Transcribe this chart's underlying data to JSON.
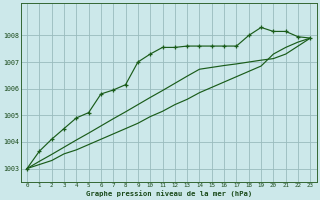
{
  "title": "Graphe pression niveau de la mer (hPa)",
  "background_color": "#cce8ea",
  "grid_color": "#99bbbd",
  "line_color": "#1a5c1a",
  "xlim": [
    -0.5,
    23.5
  ],
  "ylim": [
    1002.5,
    1009.2
  ],
  "yticks": [
    1003,
    1004,
    1005,
    1006,
    1007,
    1008
  ],
  "xticks": [
    0,
    1,
    2,
    3,
    4,
    5,
    6,
    7,
    8,
    9,
    10,
    11,
    12,
    13,
    14,
    15,
    16,
    17,
    18,
    19,
    20,
    21,
    22,
    23
  ],
  "series1": [
    1003.0,
    1003.65,
    1004.1,
    1004.5,
    1004.9,
    1005.1,
    1005.8,
    1005.95,
    1006.15,
    1007.0,
    1007.3,
    1007.55,
    1007.55,
    1007.6,
    1007.6,
    1007.6,
    1007.6,
    1007.6,
    1008.0,
    1008.3,
    1008.15,
    1008.15,
    1007.95,
    1007.9
  ],
  "series2": [
    1003.0,
    1003.27,
    1003.53,
    1003.8,
    1004.07,
    1004.33,
    1004.6,
    1004.87,
    1005.13,
    1005.4,
    1005.67,
    1005.93,
    1006.2,
    1006.47,
    1006.73,
    1006.8,
    1006.87,
    1006.93,
    1007.0,
    1007.07,
    1007.13,
    1007.3,
    1007.6,
    1007.9
  ],
  "series3": [
    1003.0,
    1003.15,
    1003.3,
    1003.55,
    1003.7,
    1003.9,
    1004.1,
    1004.3,
    1004.5,
    1004.7,
    1004.95,
    1005.15,
    1005.4,
    1005.6,
    1005.85,
    1006.05,
    1006.25,
    1006.45,
    1006.65,
    1006.85,
    1007.3,
    1007.55,
    1007.75,
    1007.9
  ]
}
